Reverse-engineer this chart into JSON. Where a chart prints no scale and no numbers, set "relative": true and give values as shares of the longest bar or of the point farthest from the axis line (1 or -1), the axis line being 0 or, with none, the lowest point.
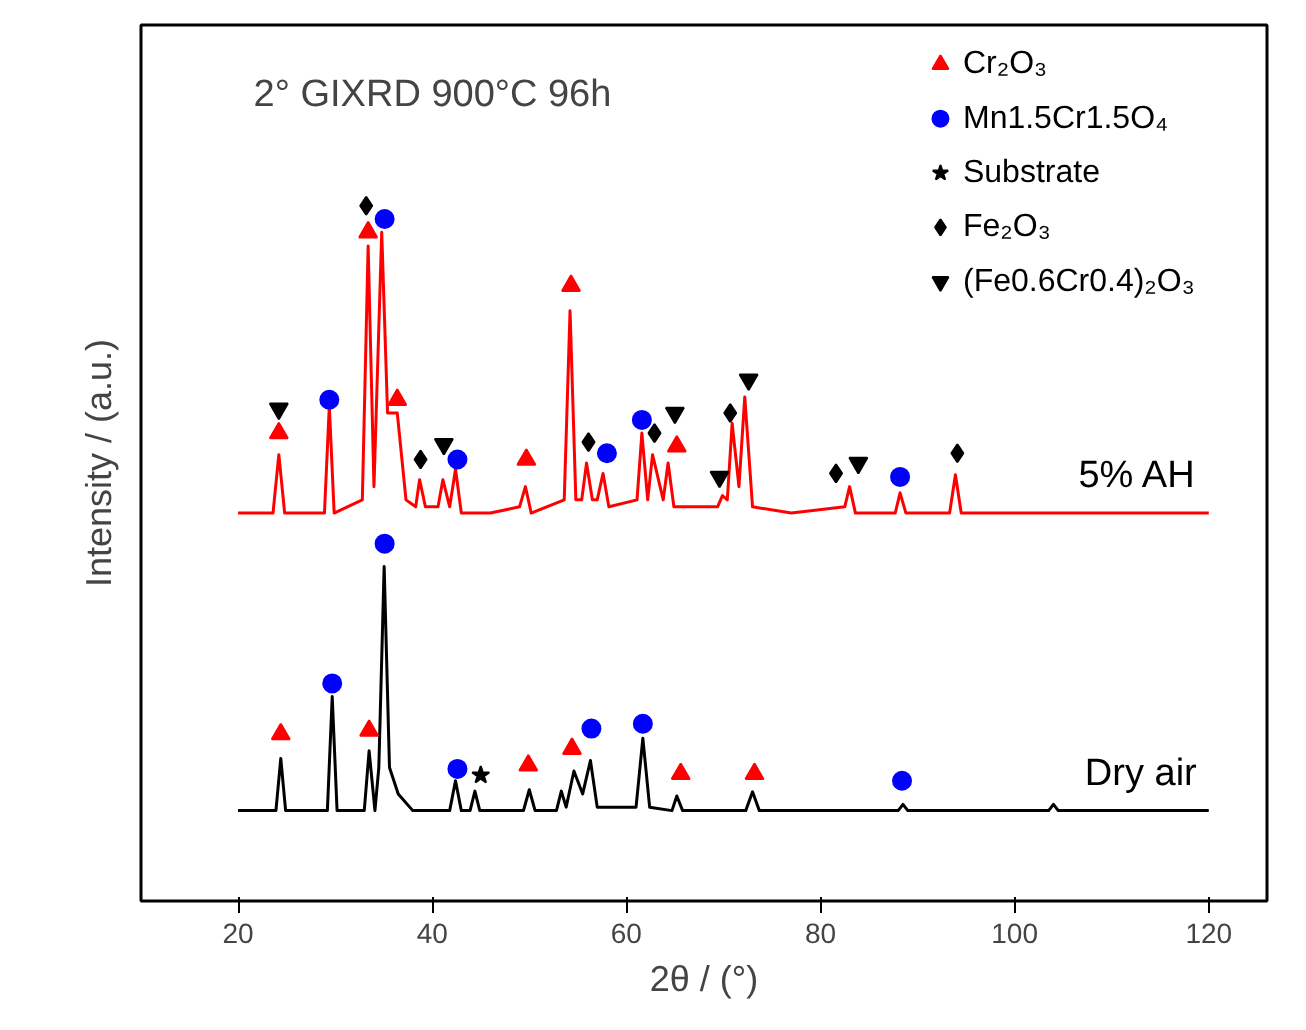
{
  "chart_data": {
    "type": "line",
    "title": "2° GIXRD 900°C 96h",
    "xlabel": "2θ / (°)",
    "ylabel": "Intensity / (a.u.)",
    "relative": true,
    "xlim": [
      10,
      126
    ],
    "xticks": [
      20,
      40,
      60,
      80,
      100,
      120
    ],
    "tick_labels": "x",
    "grid": false,
    "legend": "top right",
    "series": [
      {
        "name": "5% AH",
        "color": "#ff0000",
        "x": [
          20,
          23.6,
          24.2,
          24.8,
          28.9,
          29.4,
          29.9,
          32.8,
          33.4,
          34.0,
          34.8,
          35.4,
          36.4,
          37.3,
          38.3,
          38.7,
          39.3,
          40.6,
          41.1,
          41.8,
          42.4,
          43.0,
          46,
          49.0,
          49.6,
          50.2,
          53.6,
          54.2,
          54.8,
          55.4,
          55.9,
          56.5,
          57.0,
          57.6,
          58.2,
          61.1,
          61.6,
          62.2,
          62.7,
          63.8,
          64.3,
          64.9,
          69.4,
          69.9,
          70.4,
          70.9,
          71.6,
          72.2,
          73.0,
          77,
          82.5,
          83.0,
          83.6,
          87.7,
          88.2,
          88.8,
          93.3,
          93.9,
          94.5,
          100,
          110,
          120
        ],
        "values": [
          0.558,
          0.558,
          0.642,
          0.558,
          0.558,
          0.712,
          0.558,
          0.577,
          0.942,
          0.596,
          0.962,
          0.702,
          0.702,
          0.577,
          0.567,
          0.606,
          0.567,
          0.567,
          0.606,
          0.567,
          0.621,
          0.558,
          0.558,
          0.567,
          0.596,
          0.558,
          0.577,
          0.849,
          0.577,
          0.577,
          0.63,
          0.577,
          0.577,
          0.615,
          0.567,
          0.577,
          0.673,
          0.577,
          0.642,
          0.577,
          0.63,
          0.567,
          0.567,
          0.583,
          0.577,
          0.687,
          0.596,
          0.725,
          0.567,
          0.558,
          0.567,
          0.596,
          0.558,
          0.558,
          0.587,
          0.558,
          0.558,
          0.613,
          0.558,
          0.558,
          0.558,
          0.558
        ]
      },
      {
        "name": "Dry air",
        "color": "#000000",
        "x": [
          20,
          23.9,
          24.4,
          24.9,
          29.2,
          29.7,
          30.2,
          33.0,
          33.5,
          34.1,
          34.5,
          35.05,
          35.6,
          36.5,
          38,
          41.8,
          42.4,
          43.0,
          43.9,
          44.4,
          44.9,
          49.4,
          50.0,
          50.6,
          52.8,
          53.3,
          53.8,
          54.6,
          55.5,
          56.3,
          57.0,
          61.0,
          61.7,
          62.4,
          64.7,
          65.2,
          65.8,
          72.3,
          73.0,
          73.7,
          88.0,
          88.5,
          89.0,
          103.5,
          104,
          104.5,
          120
        ],
        "values": [
          0.13,
          0.13,
          0.205,
          0.13,
          0.13,
          0.294,
          0.13,
          0.13,
          0.216,
          0.13,
          0.192,
          0.481,
          0.192,
          0.154,
          0.13,
          0.13,
          0.173,
          0.13,
          0.13,
          0.158,
          0.13,
          0.13,
          0.16,
          0.13,
          0.13,
          0.158,
          0.135,
          0.187,
          0.154,
          0.202,
          0.135,
          0.135,
          0.234,
          0.135,
          0.13,
          0.151,
          0.13,
          0.13,
          0.157,
          0.13,
          0.13,
          0.139,
          0.13,
          0.13,
          0.139,
          0.13,
          0.13
        ]
      },
      {
        "name": "Cr₂O₃",
        "color": "#ff0000",
        "type": "scatter",
        "marker": "triangle",
        "x": [
          24.2,
          33.4,
          36.4,
          49.7,
          54.3,
          65.2,
          24.4,
          33.5,
          49.9,
          54.4,
          65.6,
          73.2
        ],
        "values": [
          0.673,
          0.962,
          0.721,
          0.635,
          0.885,
          0.654,
          0.24,
          0.245,
          0.195,
          0.219,
          0.183,
          0.183
        ]
      },
      {
        "name": "Mn1.5Cr1.5O₄",
        "color": "#0000ff",
        "type": "scatter",
        "marker": "circle",
        "x": [
          29.4,
          35.1,
          42.6,
          58.0,
          61.6,
          88.2,
          29.7,
          35.1,
          42.6,
          56.4,
          61.7,
          88.4
        ],
        "values": [
          0.721,
          0.981,
          0.635,
          0.644,
          0.692,
          0.61,
          0.313,
          0.514,
          0.19,
          0.248,
          0.255,
          0.173
        ]
      },
      {
        "name": "Substrate",
        "color": "#000000",
        "type": "scatter",
        "marker": "star",
        "x": [
          45.0
        ],
        "values": [
          0.181
        ]
      },
      {
        "name": "Fe₂O₃",
        "color": "#000000",
        "type": "scatter",
        "marker": "diamond",
        "x": [
          33.2,
          38.8,
          56.1,
          62.9,
          70.7,
          81.6,
          94.1
        ],
        "values": [
          1,
          0.635,
          0.66,
          0.673,
          0.702,
          0.615,
          0.644
        ]
      },
      {
        "name": "(Fe0.6Cr0.4)₂O₃",
        "color": "#000000",
        "type": "scatter",
        "x": [
          24.2,
          41.2,
          65.0,
          69.6,
          72.6,
          83.9
        ],
        "values": [
          0.708,
          0.657,
          0.702,
          0.61,
          0.75,
          0.63
        ]
      }
    ]
  }
}
